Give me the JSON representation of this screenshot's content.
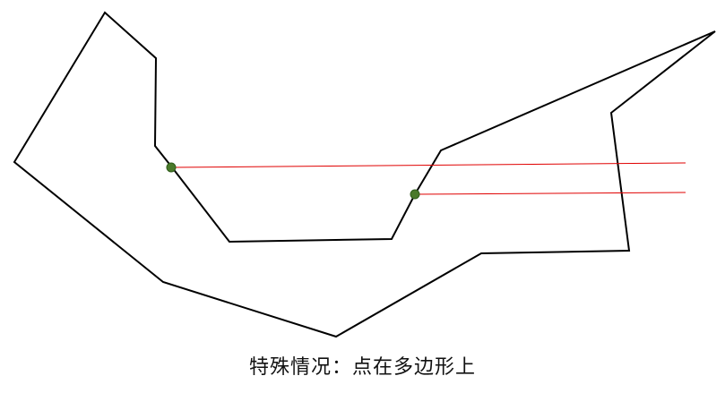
{
  "caption": "特殊情况：点在多边形上",
  "colors": {
    "polygon_stroke": "#000000",
    "ray_stroke": "#e00000",
    "point_fill": "#4a7a2a",
    "point_stroke": "#2f5d1b"
  }
}
